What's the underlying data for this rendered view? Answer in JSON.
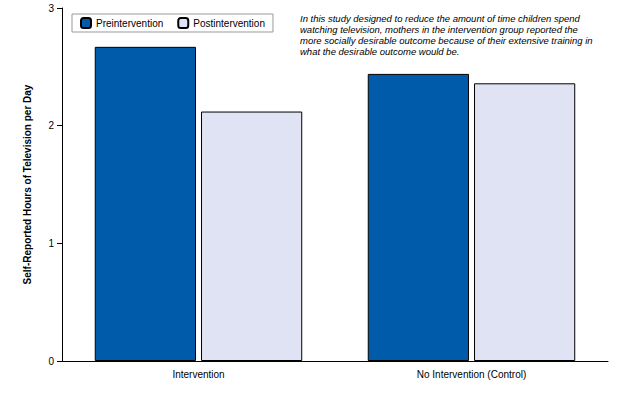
{
  "chart_data": {
    "type": "bar",
    "ylabel": "Self-Reported Hours of Television per Day",
    "annotation": "In this study designed to reduce the amount of time children spend watching television, mothers in the intervention group reported the more socially desirable outcome because of their extensive training in what the desirable outcome would be.",
    "categories": [
      "Intervention",
      "No Intervention (Control)"
    ],
    "series": [
      {
        "name": "Preintervention",
        "color": "#005bab",
        "values": [
          2.67,
          2.44
        ]
      },
      {
        "name": "Postintervention",
        "color": "#dfe3f3",
        "values": [
          2.12,
          2.36
        ]
      }
    ],
    "ylim": [
      0,
      3
    ],
    "yticks": [
      0,
      1,
      2,
      3
    ],
    "grid": false,
    "legend": "upper left"
  }
}
